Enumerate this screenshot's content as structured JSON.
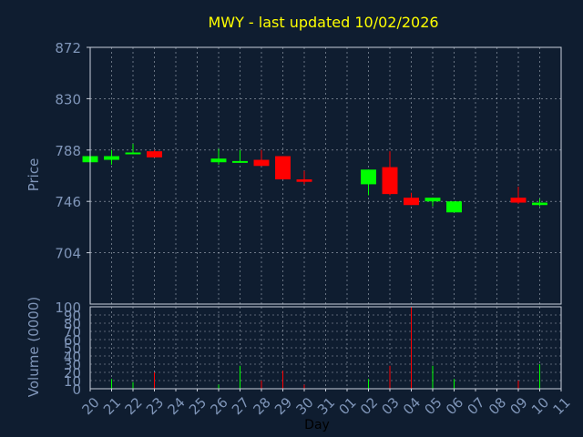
{
  "chart_data": {
    "type": "candlestick",
    "title": "MWY - last updated 10/02/2026",
    "xlabel": "Day",
    "price_panel": {
      "ylabel": "Price",
      "ylim": [
        662,
        872
      ],
      "y_ticks": [
        "872",
        "830",
        "788",
        "746",
        "704"
      ],
      "grid": true
    },
    "volume_panel": {
      "ylabel": "Volume (0000)",
      "ylim": [
        0,
        100
      ],
      "y_ticks": [
        "100",
        "90",
        "80",
        "70",
        "60",
        "50",
        "40",
        "30",
        "20",
        "10",
        "0"
      ],
      "grid": true
    },
    "x_ticks": [
      "20",
      "21",
      "22",
      "23",
      "24",
      "25",
      "26",
      "27",
      "28",
      "29",
      "30",
      "31",
      "01",
      "02",
      "03",
      "04",
      "05",
      "06",
      "07",
      "08",
      "09",
      "10",
      "11"
    ],
    "candles": [
      {
        "day": "20",
        "open": 778,
        "high": 784,
        "low": 778,
        "close": 783,
        "volume": 0
      },
      {
        "day": "21",
        "open": 780,
        "high": 788,
        "low": 776,
        "close": 783,
        "volume": 12
      },
      {
        "day": "22",
        "open": 785,
        "high": 793,
        "low": 785,
        "close": 786,
        "volume": 8
      },
      {
        "day": "23",
        "open": 787,
        "high": 788,
        "low": 782,
        "close": 782,
        "volume": 20
      },
      {
        "day": "26",
        "open": 778,
        "high": 789,
        "low": 776,
        "close": 781,
        "volume": 5
      },
      {
        "day": "27",
        "open": 778,
        "high": 788,
        "low": 778,
        "close": 779,
        "volume": 28
      },
      {
        "day": "28",
        "open": 780,
        "high": 788,
        "low": 775,
        "close": 775,
        "volume": 10
      },
      {
        "day": "29",
        "open": 783,
        "high": 783,
        "low": 764,
        "close": 764,
        "volume": 22
      },
      {
        "day": "30",
        "open": 764,
        "high": 771,
        "low": 760,
        "close": 762,
        "volume": 5
      },
      {
        "day": "02",
        "open": 760,
        "high": 772,
        "low": 751,
        "close": 772,
        "volume": 12
      },
      {
        "day": "03",
        "open": 774,
        "high": 787,
        "low": 751,
        "close": 752,
        "volume": 28
      },
      {
        "day": "04",
        "open": 749,
        "high": 753,
        "low": 743,
        "close": 743,
        "volume": 100
      },
      {
        "day": "05",
        "open": 746,
        "high": 749,
        "low": 742,
        "close": 749,
        "volume": 28
      },
      {
        "day": "06",
        "open": 737,
        "high": 746,
        "low": 737,
        "close": 746,
        "volume": 12
      },
      {
        "day": "09",
        "open": 749,
        "high": 758,
        "low": 744,
        "close": 745,
        "volume": 10
      },
      {
        "day": "10",
        "open": 743,
        "high": 748,
        "low": 742,
        "close": 745,
        "volume": 30
      }
    ],
    "colors": {
      "background": "#0f1d30",
      "up": "#00ff00",
      "down": "#ff0000",
      "title": "#ffff00",
      "axis_text": "#7f95b8",
      "frame": "#c8d0dc",
      "grid": "#c8d0dc",
      "xlabel": "#000000"
    }
  }
}
